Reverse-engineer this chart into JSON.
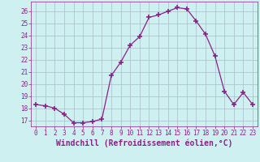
{
  "x": [
    0,
    1,
    2,
    3,
    4,
    5,
    6,
    7,
    8,
    9,
    10,
    11,
    12,
    13,
    14,
    15,
    16,
    17,
    18,
    19,
    20,
    21,
    22,
    23
  ],
  "y": [
    18.3,
    18.2,
    18.0,
    17.5,
    16.8,
    16.8,
    16.9,
    17.1,
    20.7,
    21.8,
    23.2,
    23.9,
    25.5,
    25.7,
    26.0,
    26.3,
    26.2,
    25.2,
    24.1,
    22.3,
    19.4,
    18.3,
    19.3,
    18.3
  ],
  "line_color": "#882288",
  "marker": "+",
  "marker_size": 4,
  "xlabel": "Windchill (Refroidissement éolien,°C)",
  "xlabel_fontsize": 7,
  "ylabel_ticks": [
    17,
    18,
    19,
    20,
    21,
    22,
    23,
    24,
    25,
    26
  ],
  "xtick_labels": [
    "0",
    "1",
    "2",
    "3",
    "4",
    "5",
    "6",
    "7",
    "8",
    "9",
    "10",
    "11",
    "12",
    "13",
    "14",
    "15",
    "16",
    "17",
    "18",
    "19",
    "20",
    "21",
    "22",
    "23"
  ],
  "ylim": [
    16.5,
    26.8
  ],
  "xlim": [
    -0.5,
    23.5
  ],
  "bg_color": "#cff0f0",
  "grid_color": "#aabbcc",
  "tick_color": "#882288",
  "tick_fontsize": 5.5,
  "font_family": "monospace"
}
